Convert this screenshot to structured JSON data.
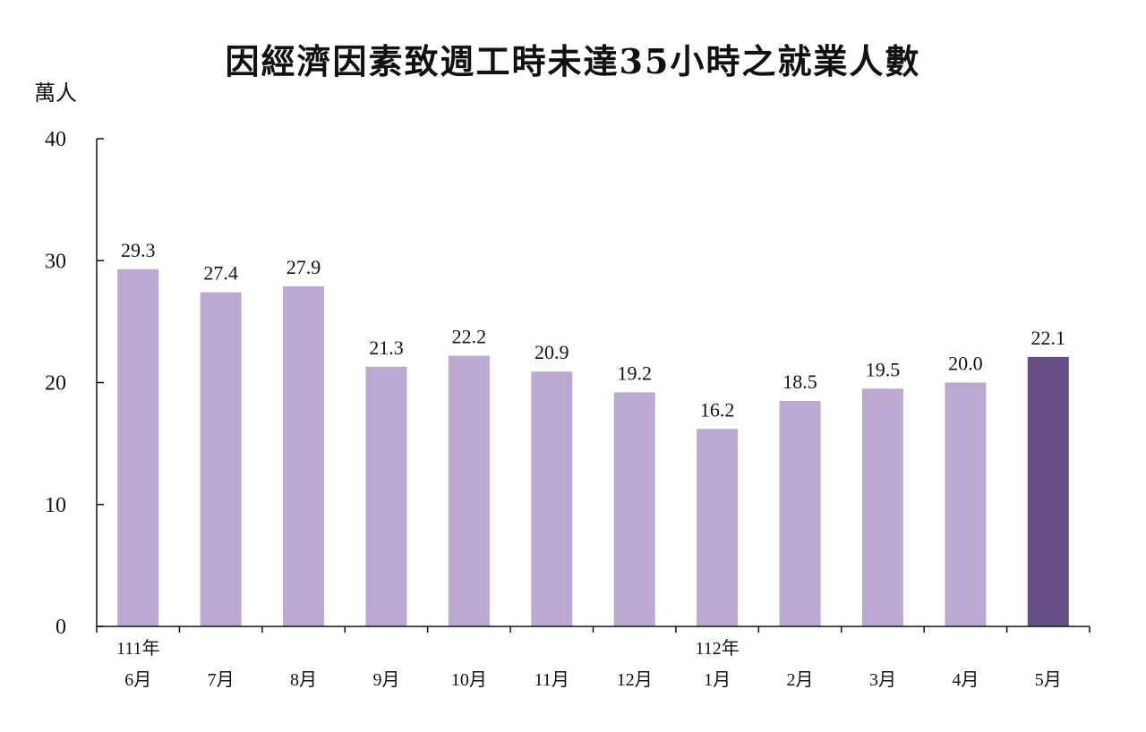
{
  "chart_data": {
    "type": "bar",
    "title": "因經濟因素致週工時未達35小時之就業人數",
    "ylabel": "萬人",
    "ylim": [
      0,
      40
    ],
    "yticks": [
      "0",
      "10",
      "20",
      "30",
      "40"
    ],
    "categories": [
      "6月",
      "7月",
      "8月",
      "9月",
      "10月",
      "11月",
      "12月",
      "1月",
      "2月",
      "3月",
      "4月",
      "5月"
    ],
    "year_labels": [
      {
        "index": 0,
        "text": "111年"
      },
      {
        "index": 7,
        "text": "112年"
      }
    ],
    "values": [
      29.3,
      27.4,
      27.9,
      21.3,
      22.2,
      20.9,
      19.2,
      16.2,
      18.5,
      19.5,
      20.0,
      22.1
    ],
    "value_labels": [
      "29.3",
      "27.4",
      "27.9",
      "21.3",
      "22.2",
      "20.9",
      "19.2",
      "16.2",
      "18.5",
      "19.5",
      "20.0",
      "22.1"
    ],
    "highlight_index": 11,
    "colors": {
      "bar": "#bba9d1",
      "highlight": "#664f86",
      "axis": "#111111"
    },
    "grid": false,
    "legend": "none"
  }
}
